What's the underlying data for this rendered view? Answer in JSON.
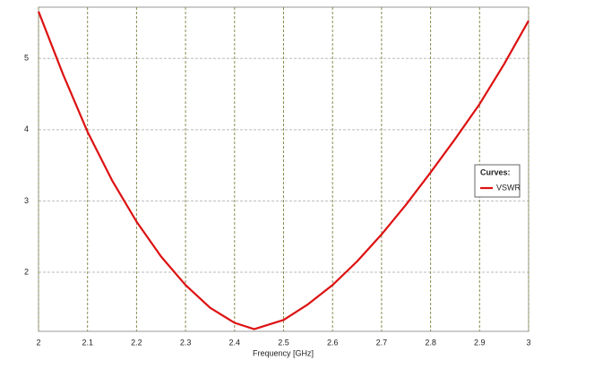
{
  "chart_data": {
    "type": "line",
    "x_label": "Frequency [GHz]",
    "x": [
      2.0,
      2.05,
      2.1,
      2.15,
      2.2,
      2.25,
      2.3,
      2.35,
      2.4,
      2.44,
      2.5,
      2.55,
      2.6,
      2.65,
      2.7,
      2.75,
      2.8,
      2.85,
      2.9,
      2.95,
      3.0
    ],
    "series": [
      {
        "name": "VSWR",
        "color": "#dd1111",
        "values": [
          5.66,
          4.78,
          3.97,
          3.29,
          2.71,
          2.22,
          1.82,
          1.5,
          1.29,
          1.2,
          1.33,
          1.55,
          1.82,
          2.15,
          2.53,
          2.95,
          3.4,
          3.87,
          4.36,
          4.92,
          5.53
        ]
      }
    ],
    "xlim": [
      2,
      3
    ],
    "xticks": [
      2,
      2.1,
      2.2,
      2.3,
      2.4,
      2.5,
      2.6,
      2.7,
      2.8,
      2.9,
      3
    ],
    "ylim": [
      1.17,
      5.72
    ],
    "yticks": [
      2,
      3,
      4,
      5
    ],
    "grid": true,
    "legend_title": "Curves:",
    "legend": "right"
  }
}
